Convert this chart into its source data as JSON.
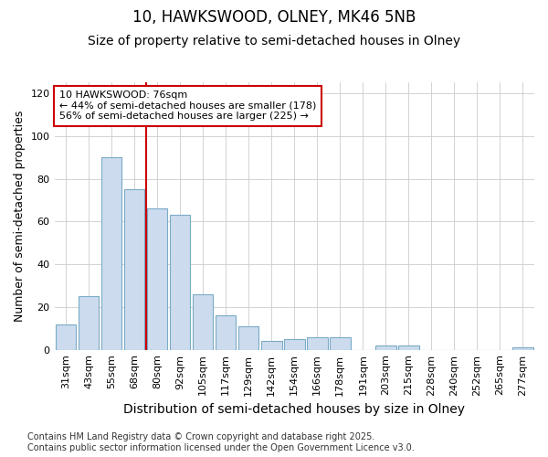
{
  "title1": "10, HAWKSWOOD, OLNEY, MK46 5NB",
  "title2": "Size of property relative to semi-detached houses in Olney",
  "xlabel": "Distribution of semi-detached houses by size in Olney",
  "ylabel": "Number of semi-detached properties",
  "categories": [
    "31sqm",
    "43sqm",
    "55sqm",
    "68sqm",
    "80sqm",
    "92sqm",
    "105sqm",
    "117sqm",
    "129sqm",
    "142sqm",
    "154sqm",
    "166sqm",
    "178sqm",
    "191sqm",
    "203sqm",
    "215sqm",
    "228sqm",
    "240sqm",
    "252sqm",
    "265sqm",
    "277sqm"
  ],
  "values": [
    12,
    25,
    90,
    75,
    66,
    63,
    26,
    16,
    11,
    4,
    5,
    6,
    6,
    0,
    2,
    2,
    0,
    0,
    0,
    0,
    1
  ],
  "bar_color": "#ccdcee",
  "bar_edge_color": "#7aaac8",
  "vline_color": "#cc0000",
  "vline_x": 3.5,
  "annotation_text_line1": "10 HAWKSWOOD: 76sqm",
  "annotation_text_line2": "← 44% of semi-detached houses are smaller (178)",
  "annotation_text_line3": "56% of semi-detached houses are larger (225) →",
  "annotation_box_edgecolor": "#cc0000",
  "ylim": [
    0,
    125
  ],
  "yticks": [
    0,
    20,
    40,
    60,
    80,
    100,
    120
  ],
  "grid_color": "#cccccc",
  "bg_color": "#ffffff",
  "plot_bg_color": "#ffffff",
  "footer_line1": "Contains HM Land Registry data © Crown copyright and database right 2025.",
  "footer_line2": "Contains public sector information licensed under the Open Government Licence v3.0.",
  "title1_fontsize": 12,
  "title2_fontsize": 10,
  "xlabel_fontsize": 10,
  "ylabel_fontsize": 9,
  "tick_fontsize": 8,
  "annotation_fontsize": 8,
  "footer_fontsize": 7
}
